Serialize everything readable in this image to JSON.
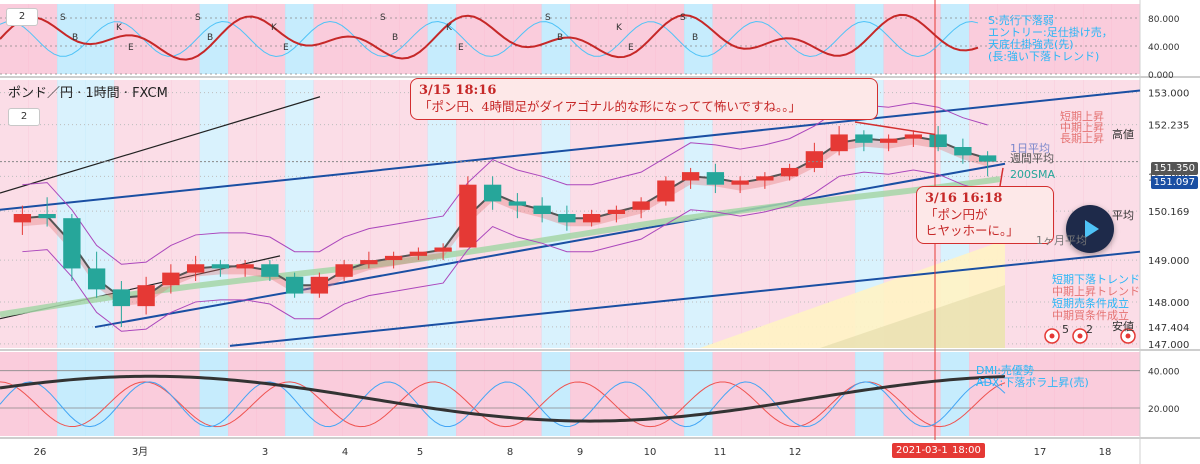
{
  "chart_data": {
    "type": "candlestick",
    "symbol_label": "ポンド／円 · 1時間 · FXCM",
    "collapse_label": "2",
    "x_ticks": [
      "26",
      "3月",
      "3",
      "4",
      "5",
      "8",
      "9",
      "10",
      "11",
      "12",
      "17",
      "18"
    ],
    "date_marker": "2021-03-15",
    "time_marker": "18:00",
    "price_axis": {
      "ticks": [
        "153.000",
        "152.235",
        "151.000",
        "150.169",
        "149.000",
        "148.000",
        "147.404",
        "147.000"
      ],
      "ylim": [
        146.9,
        153.3
      ],
      "current_price": "151.350",
      "current_price2": "151.097",
      "labels": {
        "high": "高値",
        "avg": "平均",
        "low": "安値"
      }
    },
    "candles_ohlc_approx": [
      [
        149.9,
        150.3,
        149.6,
        150.1
      ],
      [
        150.1,
        150.5,
        149.8,
        150.0
      ],
      [
        150.0,
        150.1,
        148.5,
        148.8
      ],
      [
        148.8,
        149.2,
        148.1,
        148.3
      ],
      [
        148.3,
        148.5,
        147.4,
        147.9
      ],
      [
        147.9,
        148.6,
        147.7,
        148.4
      ],
      [
        148.4,
        148.9,
        148.2,
        148.7
      ],
      [
        148.7,
        149.1,
        148.5,
        148.9
      ],
      [
        148.9,
        149.0,
        148.6,
        148.8
      ],
      [
        148.8,
        149.0,
        148.6,
        148.9
      ],
      [
        148.9,
        149.0,
        148.5,
        148.6
      ],
      [
        148.6,
        148.7,
        148.1,
        148.2
      ],
      [
        148.2,
        148.7,
        148.1,
        148.6
      ],
      [
        148.6,
        149.0,
        148.5,
        148.9
      ],
      [
        148.9,
        149.2,
        148.8,
        149.0
      ],
      [
        149.0,
        149.2,
        148.8,
        149.1
      ],
      [
        149.1,
        149.3,
        149.0,
        149.2
      ],
      [
        149.2,
        149.4,
        149.0,
        149.3
      ],
      [
        149.3,
        151.0,
        149.3,
        150.8
      ],
      [
        150.8,
        151.0,
        150.2,
        150.4
      ],
      [
        150.4,
        150.6,
        150.0,
        150.3
      ],
      [
        150.3,
        150.5,
        149.9,
        150.1
      ],
      [
        150.1,
        150.3,
        149.7,
        149.9
      ],
      [
        149.9,
        150.2,
        149.8,
        150.1
      ],
      [
        150.1,
        150.3,
        149.9,
        150.2
      ],
      [
        150.2,
        150.5,
        150.0,
        150.4
      ],
      [
        150.4,
        151.0,
        150.3,
        150.9
      ],
      [
        150.9,
        151.2,
        150.7,
        151.1
      ],
      [
        151.1,
        151.3,
        150.6,
        150.8
      ],
      [
        150.8,
        151.0,
        150.6,
        150.9
      ],
      [
        150.9,
        151.1,
        150.7,
        151.0
      ],
      [
        151.0,
        151.3,
        150.9,
        151.2
      ],
      [
        151.2,
        151.8,
        151.1,
        151.6
      ],
      [
        151.6,
        152.2,
        151.5,
        152.0
      ],
      [
        152.0,
        152.1,
        151.6,
        151.8
      ],
      [
        151.8,
        152.0,
        151.6,
        151.9
      ],
      [
        151.9,
        152.1,
        151.7,
        152.0
      ],
      [
        152.0,
        152.2,
        151.6,
        151.7
      ],
      [
        151.7,
        151.9,
        151.3,
        151.5
      ],
      [
        151.5,
        151.6,
        151.0,
        151.35
      ]
    ],
    "series": [
      {
        "name": "短期上昇",
        "color": "#e57373"
      },
      {
        "name": "中期上昇",
        "color": "#e57373"
      },
      {
        "name": "長期上昇",
        "color": "#e57373"
      },
      {
        "name": "週間平均",
        "color": "#555555"
      },
      {
        "name": "200SMA",
        "color": "#26a69a"
      },
      {
        "name": "1ヶ月平均",
        "color": "#777777"
      },
      {
        "name": "1日平均",
        "color": "#7986cb"
      }
    ],
    "right_labels": [
      "短期下落トレンド",
      "中期上昇トレンド",
      "短期売条件成立",
      "中期買条件成立"
    ],
    "top_panel": {
      "ticks": [
        "80.000",
        "40.000",
        "0.000"
      ],
      "labels": [
        "S:売行下落弱",
        "エントリー:足仕掛け売，",
        "天底仕掛強売(先)",
        "(長:強い下落トレンド)"
      ],
      "markers": [
        "S",
        "K",
        "B",
        "E"
      ]
    },
    "bottom_panel": {
      "ticks": [
        "40.000",
        "20.000"
      ],
      "labels": [
        "DMI:売優勢",
        "ADX:下落ボラ上昇(売)"
      ]
    },
    "counts": [
      "5",
      "2"
    ]
  },
  "callouts": [
    {
      "title": "3/15 18:16",
      "body": "「ポン円、4時間足がダイアゴナル的な形になってて怖いですね。。」"
    },
    {
      "title": "3/16 16:18",
      "body1": "「ポン円が",
      "body2": "ヒヤッホーに。」"
    }
  ],
  "colors": {
    "up_candle": "#e53935",
    "down_candle": "#26a69a",
    "channel": "#1a4fa3",
    "bollinger": "#ab47bc",
    "highlight_pink": "#f8bbd0",
    "highlight_blue": "#b3e5fc",
    "callout_border": "#d32f2f"
  }
}
